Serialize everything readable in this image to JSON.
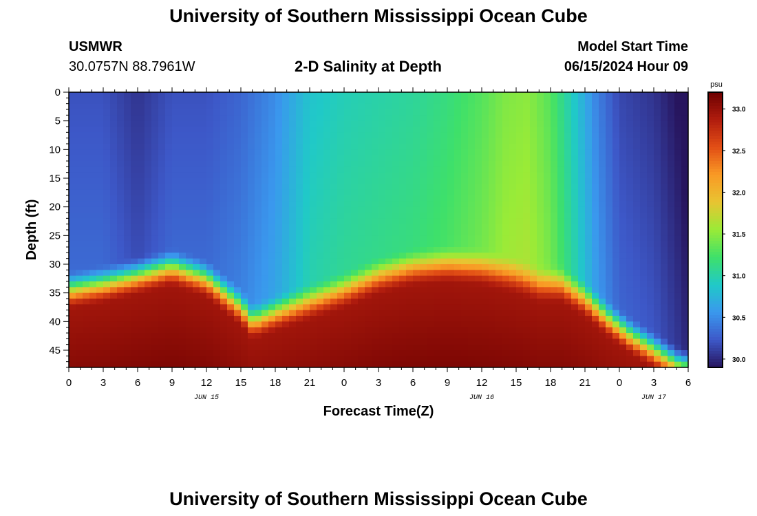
{
  "page": {
    "title_top": "University of Southern Mississippi Ocean Cube",
    "title_bottom": "University of Southern Mississippi Ocean Cube",
    "station_id": "USMWR",
    "coords": "30.0757N  88.7961W",
    "subtitle": "2-D Salinity at Depth",
    "model_start_label": "Model Start Time",
    "model_start_value": "06/15/2024 Hour 09"
  },
  "colors": {
    "colormap": [
      "#27155e",
      "#3d58c8",
      "#3a98ee",
      "#20c9c8",
      "#3ee06a",
      "#9aeb37",
      "#e8c432",
      "#f99a25",
      "#e24e15",
      "#b01c0e",
      "#6d0000"
    ]
  },
  "chart_data": {
    "type": "heatmap",
    "xlabel": "Forecast Time(Z)",
    "ylabel": "Depth (ft)",
    "x_ticks": [
      "0",
      "3",
      "6",
      "9",
      "12",
      "15",
      "18",
      "21",
      "0",
      "3",
      "6",
      "9",
      "12",
      "15",
      "18",
      "21",
      "0",
      "3",
      "6"
    ],
    "x_range_hours": [
      0,
      54
    ],
    "date_labels": [
      {
        "text": "JUN 15",
        "hour": 12
      },
      {
        "text": "JUN 16",
        "hour": 36
      },
      {
        "text": "JUN 17",
        "hour": 51
      }
    ],
    "y_ticks": [
      "0",
      "5",
      "10",
      "15",
      "20",
      "25",
      "30",
      "35",
      "40",
      "45"
    ],
    "y_range": [
      0,
      48
    ],
    "y_inverted": true,
    "colorbar": {
      "unit": "psu",
      "ticks": [
        "33.0",
        "32.5",
        "32.0",
        "31.5",
        "31.0",
        "30.5",
        "30.0"
      ],
      "range": [
        29.9,
        33.2
      ]
    },
    "surface_salinity": [
      [
        0,
        30.2
      ],
      [
        3,
        30.2
      ],
      [
        6,
        30.05
      ],
      [
        9,
        30.2
      ],
      [
        12,
        30.2
      ],
      [
        15,
        30.3
      ],
      [
        18,
        30.5
      ],
      [
        21,
        30.85
      ],
      [
        24,
        30.95
      ],
      [
        27,
        31.0
      ],
      [
        30,
        31.05
      ],
      [
        33,
        31.15
      ],
      [
        36,
        31.3
      ],
      [
        38,
        31.45
      ],
      [
        40,
        31.5
      ],
      [
        42,
        31.3
      ],
      [
        44,
        30.9
      ],
      [
        46,
        30.45
      ],
      [
        48,
        30.15
      ],
      [
        51,
        30.05
      ],
      [
        53,
        29.9
      ],
      [
        54,
        29.8
      ]
    ],
    "pycnocline_depth_ft": [
      [
        0,
        34
      ],
      [
        3,
        33
      ],
      [
        6,
        31.5
      ],
      [
        9,
        30
      ],
      [
        12,
        32
      ],
      [
        15,
        37
      ],
      [
        16,
        39.5
      ],
      [
        18,
        38
      ],
      [
        21,
        36
      ],
      [
        24,
        34
      ],
      [
        27,
        31.5
      ],
      [
        30,
        30
      ],
      [
        33,
        29.5
      ],
      [
        36,
        30
      ],
      [
        39,
        31.5
      ],
      [
        41,
        33
      ],
      [
        43,
        33
      ],
      [
        45,
        35.5
      ],
      [
        47,
        39
      ],
      [
        49,
        42
      ],
      [
        51,
        44.5
      ],
      [
        53,
        47
      ],
      [
        54,
        47.5
      ]
    ],
    "bottom_layer_salinity": 32.9
  }
}
